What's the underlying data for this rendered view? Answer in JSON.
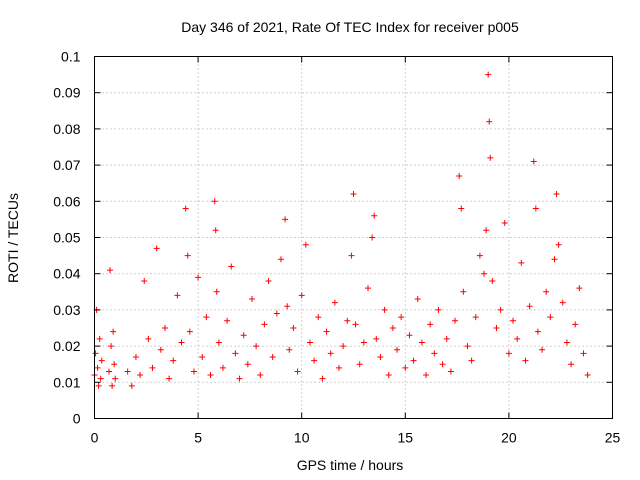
{
  "chart_data": {
    "type": "scatter",
    "title": "Day 346 of 2021, Rate Of TEC Index for receiver p005",
    "xlabel": "GPS time / hours",
    "ylabel": "ROTI / TECUs",
    "xlim": [
      0,
      25
    ],
    "ylim": [
      0,
      0.1
    ],
    "x_ticks": [
      0,
      5,
      10,
      15,
      20,
      25
    ],
    "y_ticks": [
      0,
      0.01,
      0.02,
      0.03,
      0.04,
      0.05,
      0.06,
      0.07,
      0.08,
      0.09,
      0.1
    ],
    "x_tick_labels": [
      "0",
      "5",
      "10",
      "15",
      "20",
      "25"
    ],
    "y_tick_labels": [
      "0",
      "0.01",
      "0.02",
      "0.03",
      "0.04",
      "0.05",
      "0.06",
      "0.07",
      "0.08",
      "0.09",
      "0.1"
    ],
    "grid": true,
    "marker": "+",
    "marker_color": "#ff0000",
    "series": [
      {
        "name": "ROTI",
        "x": [
          0.0,
          0.05,
          0.1,
          0.15,
          0.2,
          0.25,
          0.3,
          0.35,
          0.7,
          0.75,
          0.8,
          0.85,
          0.9,
          0.95,
          1.0,
          1.6,
          1.8,
          2.0,
          2.2,
          2.4,
          2.6,
          2.8,
          3.0,
          3.2,
          3.4,
          3.6,
          3.8,
          4.0,
          4.2,
          4.4,
          4.5,
          4.6,
          4.8,
          5.0,
          5.2,
          5.4,
          5.6,
          5.8,
          5.85,
          5.9,
          6.0,
          6.2,
          6.4,
          6.6,
          6.8,
          7.0,
          7.2,
          7.4,
          7.6,
          7.8,
          8.0,
          8.2,
          8.4,
          8.6,
          8.8,
          9.0,
          9.2,
          9.3,
          9.4,
          9.6,
          9.8,
          10.0,
          10.2,
          10.4,
          10.6,
          10.8,
          11.0,
          11.2,
          11.4,
          11.6,
          11.8,
          12.0,
          12.2,
          12.4,
          12.5,
          12.6,
          12.8,
          13.0,
          13.2,
          13.4,
          13.5,
          13.6,
          13.8,
          14.0,
          14.2,
          14.4,
          14.6,
          14.8,
          15.0,
          15.2,
          15.4,
          15.6,
          15.8,
          16.0,
          16.2,
          16.4,
          16.6,
          16.8,
          17.0,
          17.2,
          17.4,
          17.6,
          17.7,
          17.8,
          18.0,
          18.2,
          18.4,
          18.6,
          18.8,
          18.9,
          19.0,
          19.05,
          19.1,
          19.2,
          19.4,
          19.6,
          19.8,
          20.0,
          20.2,
          20.4,
          20.6,
          20.8,
          21.0,
          21.2,
          21.3,
          21.4,
          21.6,
          21.8,
          22.0,
          22.2,
          22.3,
          22.4,
          22.6,
          22.8,
          23.0,
          23.2,
          23.4,
          23.6,
          23.8
        ],
        "y": [
          0.012,
          0.018,
          0.03,
          0.014,
          0.009,
          0.022,
          0.011,
          0.016,
          0.013,
          0.041,
          0.02,
          0.009,
          0.024,
          0.015,
          0.011,
          0.013,
          0.009,
          0.017,
          0.012,
          0.038,
          0.022,
          0.014,
          0.047,
          0.019,
          0.025,
          0.011,
          0.016,
          0.034,
          0.021,
          0.058,
          0.045,
          0.024,
          0.013,
          0.039,
          0.017,
          0.028,
          0.012,
          0.06,
          0.052,
          0.035,
          0.021,
          0.014,
          0.027,
          0.042,
          0.018,
          0.011,
          0.023,
          0.015,
          0.033,
          0.02,
          0.012,
          0.026,
          0.038,
          0.017,
          0.029,
          0.044,
          0.055,
          0.031,
          0.019,
          0.025,
          0.013,
          0.034,
          0.048,
          0.021,
          0.016,
          0.028,
          0.011,
          0.024,
          0.018,
          0.032,
          0.014,
          0.02,
          0.027,
          0.045,
          0.062,
          0.026,
          0.015,
          0.021,
          0.036,
          0.05,
          0.056,
          0.022,
          0.017,
          0.03,
          0.012,
          0.025,
          0.019,
          0.028,
          0.014,
          0.023,
          0.016,
          0.033,
          0.021,
          0.012,
          0.026,
          0.018,
          0.03,
          0.015,
          0.022,
          0.013,
          0.027,
          0.067,
          0.058,
          0.035,
          0.02,
          0.016,
          0.028,
          0.045,
          0.04,
          0.052,
          0.095,
          0.082,
          0.072,
          0.038,
          0.025,
          0.03,
          0.054,
          0.018,
          0.027,
          0.022,
          0.043,
          0.016,
          0.031,
          0.071,
          0.058,
          0.024,
          0.019,
          0.035,
          0.028,
          0.044,
          0.062,
          0.048,
          0.032,
          0.021,
          0.015,
          0.026,
          0.036,
          0.018,
          0.012
        ]
      }
    ]
  }
}
